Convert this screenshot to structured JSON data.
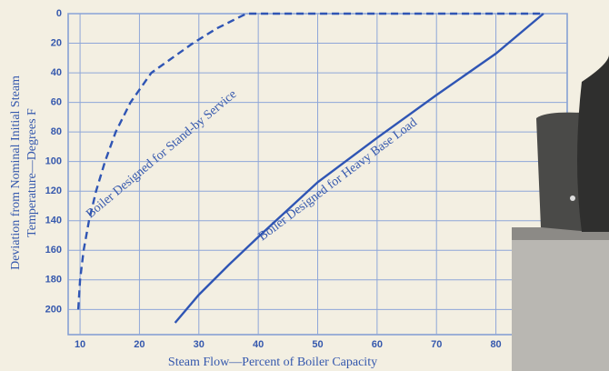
{
  "chart_data": {
    "type": "line",
    "xlabel": "Steam Flow—Percent of Boiler Capacity",
    "ylabel": [
      "Deviation from Nominal Initial Steam",
      "Temperature—Degrees F"
    ],
    "xlim": [
      8,
      92
    ],
    "ylim": [
      0,
      217
    ],
    "y_inverted": true,
    "grid": true,
    "xticks": [
      10,
      20,
      30,
      40,
      50,
      60,
      70,
      80
    ],
    "yticks": [
      0,
      20,
      40,
      60,
      80,
      100,
      120,
      140,
      160,
      180,
      200
    ],
    "series": [
      {
        "name": "Boiler Designed for Stand-by Service",
        "color": "#2f55b4",
        "dashed": true,
        "x": [
          9.7,
          10,
          10.6,
          11.5,
          12.7,
          14.2,
          16,
          18.5,
          22,
          29,
          33,
          38,
          88
        ],
        "values": [
          200,
          180,
          160,
          140,
          120,
          100,
          80,
          60,
          40,
          20,
          10,
          0,
          0
        ]
      },
      {
        "name": "Boiler Designed for Heavy Base Load",
        "color": "#2f55b4",
        "dashed": false,
        "x": [
          26,
          30,
          35,
          40,
          50,
          60,
          70,
          80,
          88
        ],
        "values": [
          209,
          190,
          170,
          151,
          114,
          84,
          55,
          27,
          0
        ]
      }
    ]
  }
}
